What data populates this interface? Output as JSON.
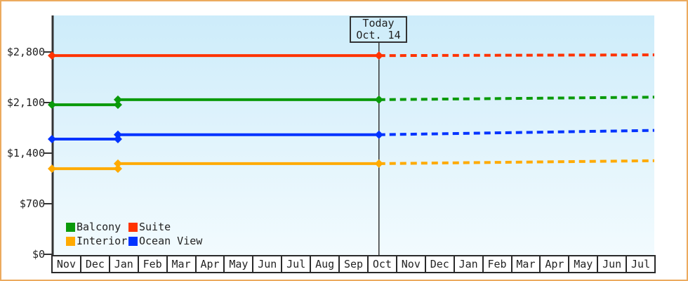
{
  "frame": {
    "border_color": "#ecaa5e",
    "plot_background_top": "#cdecfa",
    "plot_background_middle": "#e2f4fc",
    "plot_background_bottom": "#f2fbfe",
    "axis_color": "#333333",
    "text_color": "#222222"
  },
  "chart_data": {
    "type": "line",
    "title": "",
    "description": "Cruise cabin price history by category with dotted future projection after today marker",
    "x_axis": {
      "unit": "month",
      "categories": [
        "Nov",
        "Dec",
        "Jan",
        "Feb",
        "Mar",
        "Apr",
        "May",
        "Jun",
        "Jul",
        "Aug",
        "Sep",
        "Oct",
        "Nov",
        "Dec",
        "Jan",
        "Feb",
        "Mar",
        "Apr",
        "May",
        "Jun",
        "Jul"
      ]
    },
    "y_axis": {
      "tick_values": [
        0,
        700,
        1400,
        2100,
        2800
      ],
      "tick_labels": [
        "$0",
        "$700",
        "$1,400",
        "$2,100",
        "$2,800"
      ],
      "range": [
        0,
        2800
      ],
      "grid": false
    },
    "today": {
      "x": 11.4,
      "label_line1": "Today",
      "label_line2": "Oct. 14"
    },
    "series": [
      {
        "name": "Suite",
        "color": "#ff3300",
        "solid": [
          [
            0,
            2750
          ],
          [
            11.4,
            2750
          ]
        ],
        "dotted": [
          [
            11.4,
            2750
          ],
          [
            21,
            2760
          ]
        ],
        "markers": [
          [
            0,
            2750
          ],
          [
            11.4,
            2750
          ]
        ]
      },
      {
        "name": "Balcony",
        "color": "#0a9a0a",
        "solid": [
          [
            0,
            2070
          ],
          [
            2.3,
            2070
          ],
          [
            2.3,
            2140
          ],
          [
            11.4,
            2140
          ]
        ],
        "dotted": [
          [
            11.4,
            2140
          ],
          [
            21,
            2175
          ]
        ],
        "markers": [
          [
            0,
            2070
          ],
          [
            2.3,
            2070
          ],
          [
            2.3,
            2140
          ],
          [
            11.4,
            2140
          ]
        ]
      },
      {
        "name": "Ocean View",
        "color": "#0033ff",
        "solid": [
          [
            0,
            1595
          ],
          [
            2.3,
            1595
          ],
          [
            2.3,
            1655
          ],
          [
            11.4,
            1655
          ]
        ],
        "dotted": [
          [
            11.4,
            1655
          ],
          [
            21,
            1715
          ]
        ],
        "markers": [
          [
            0,
            1595
          ],
          [
            2.3,
            1595
          ],
          [
            2.3,
            1655
          ],
          [
            11.4,
            1655
          ]
        ]
      },
      {
        "name": "Interior",
        "color": "#ffaa00",
        "solid": [
          [
            0,
            1185
          ],
          [
            2.3,
            1185
          ],
          [
            2.3,
            1255
          ],
          [
            11.4,
            1255
          ]
        ],
        "dotted": [
          [
            11.4,
            1255
          ],
          [
            21,
            1295
          ]
        ],
        "markers": [
          [
            0,
            1185
          ],
          [
            2.3,
            1185
          ],
          [
            2.3,
            1255
          ],
          [
            11.4,
            1255
          ]
        ]
      }
    ],
    "legend": {
      "position": "bottom-left",
      "items": [
        {
          "label": "Balcony",
          "color": "#0a9a0a"
        },
        {
          "label": "Suite",
          "color": "#ff3300"
        },
        {
          "label": "Interior",
          "color": "#ffaa00"
        },
        {
          "label": "Ocean View",
          "color": "#0033ff"
        }
      ]
    }
  }
}
